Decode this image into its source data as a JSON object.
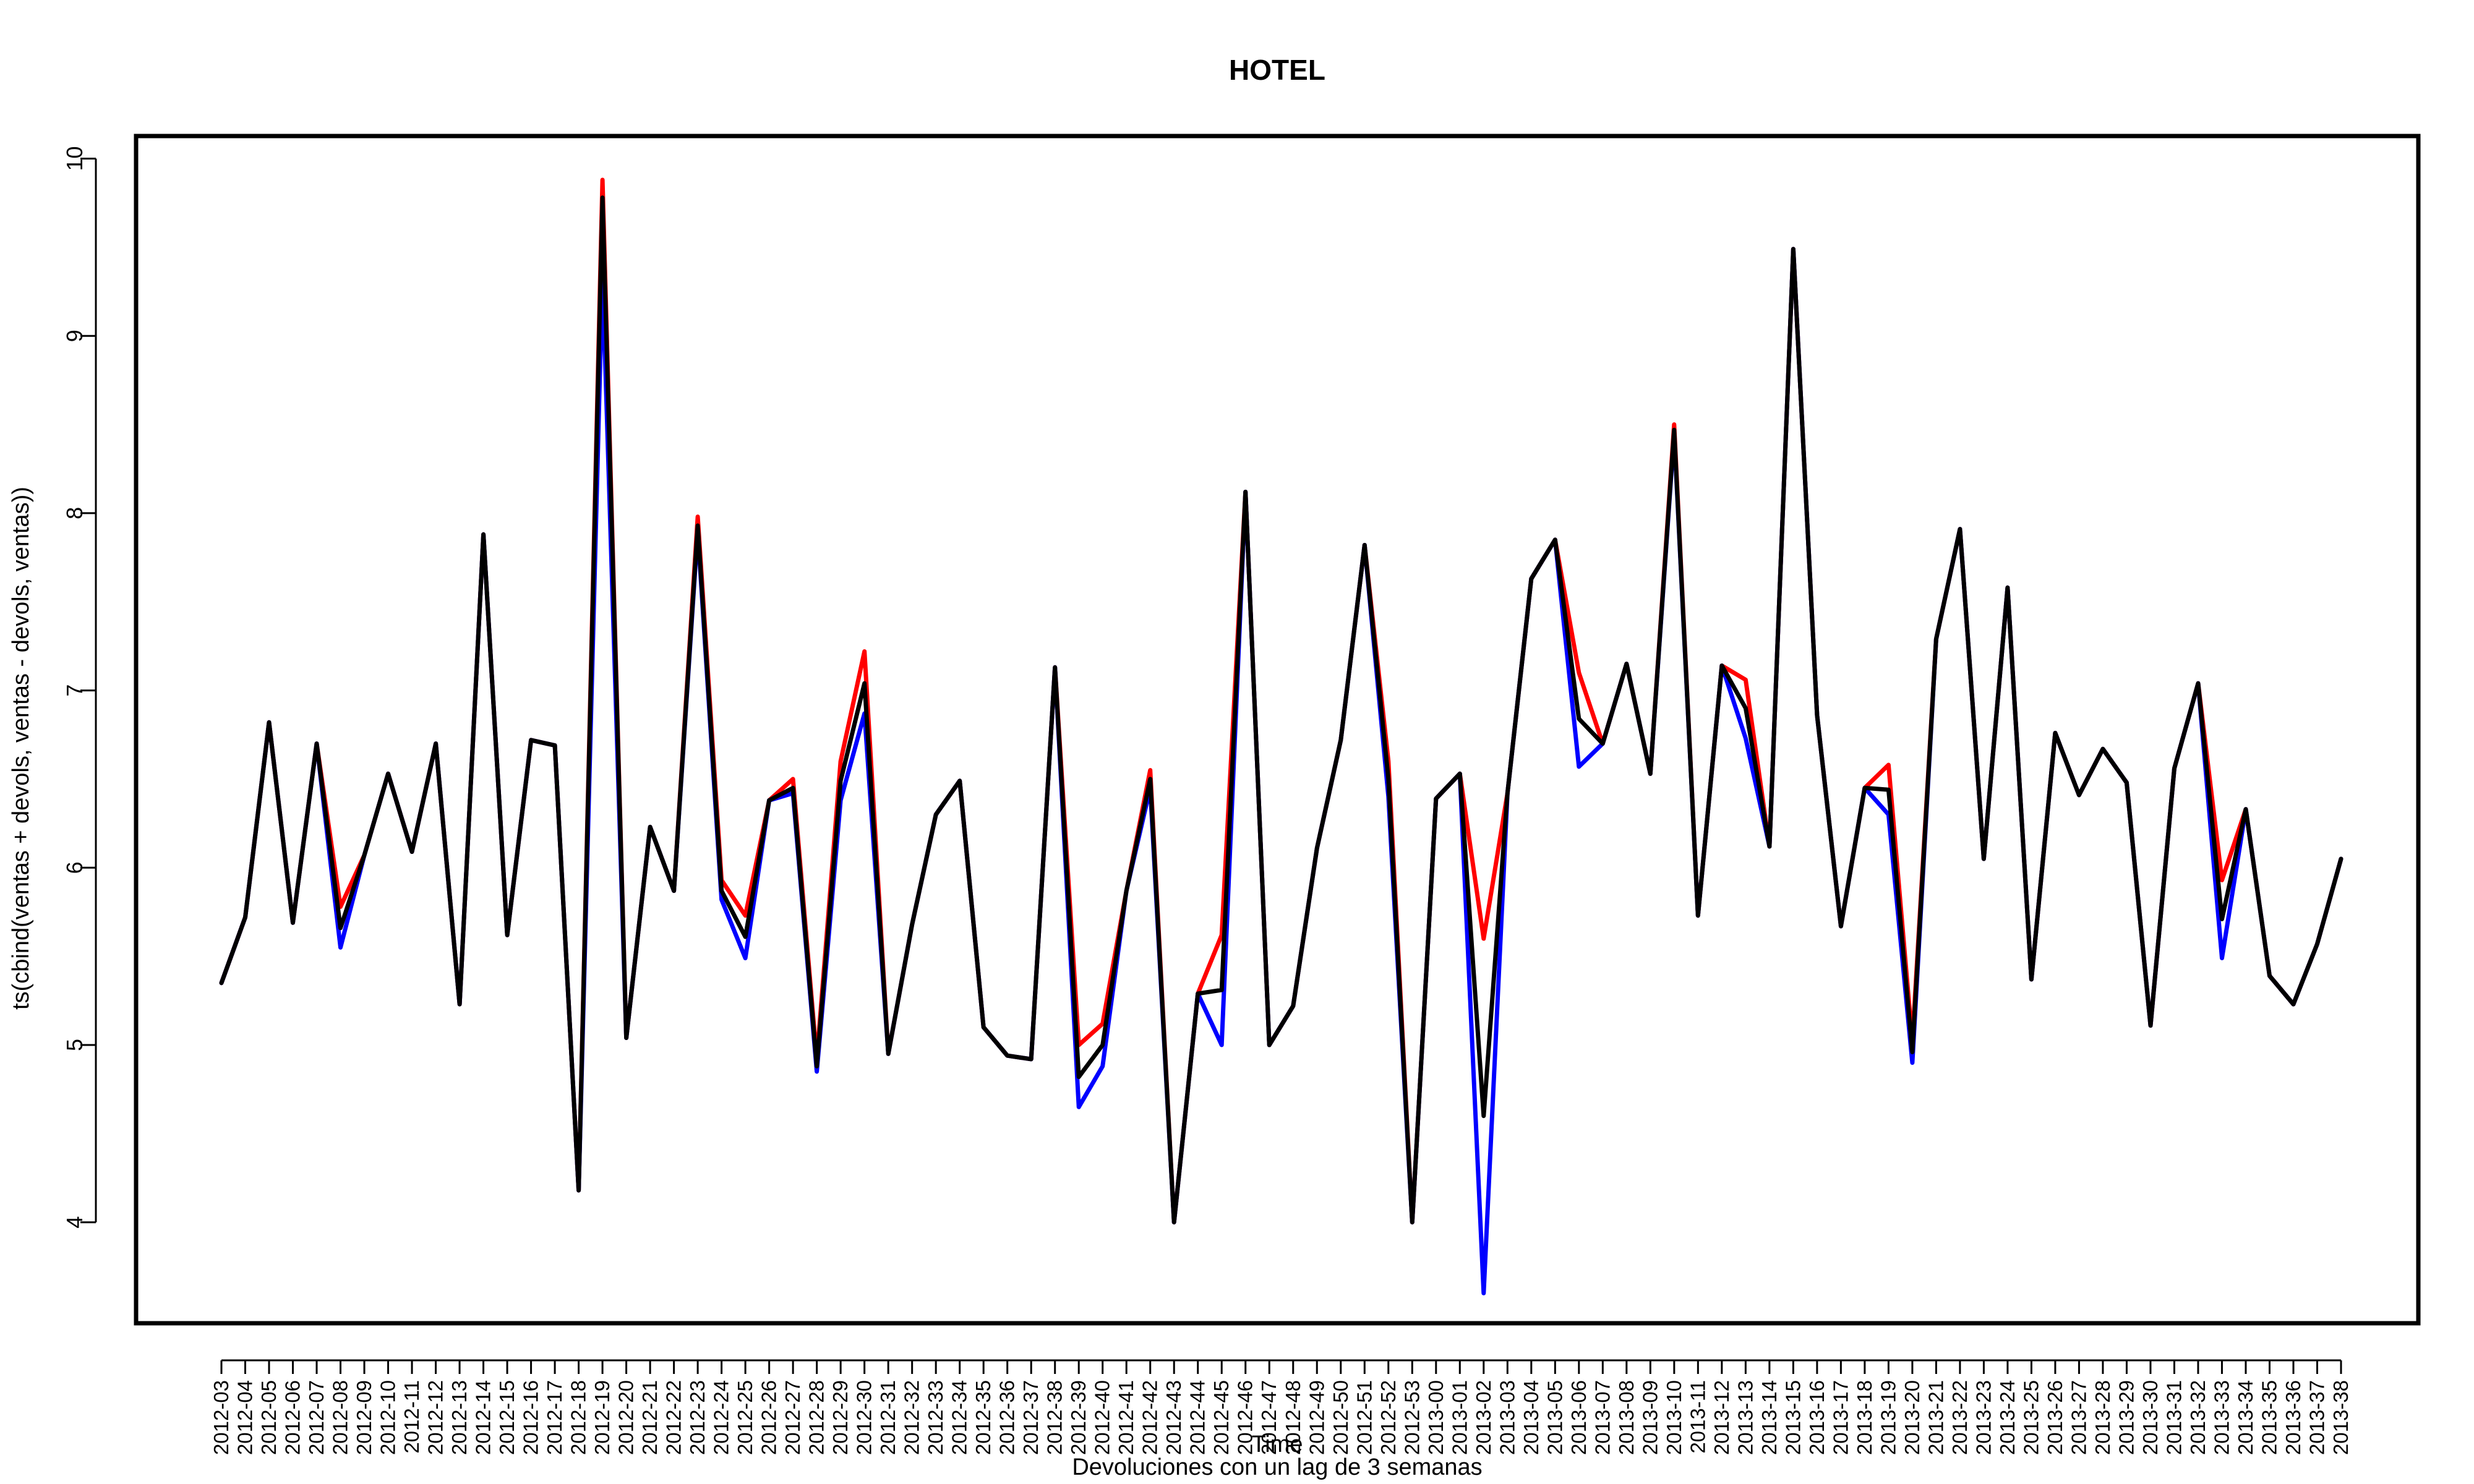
{
  "chart_data": {
    "type": "line",
    "title": "HOTEL",
    "xlabel": "Time",
    "subtitle": "Devoluciones con un lag de 3 semanas",
    "ylabel": "ts(cbind(ventas + devols, ventas - devols, ventas))",
    "ylim": [
      3.4,
      10.15
    ],
    "yticks": [
      4,
      5,
      6,
      7,
      8,
      9,
      10
    ],
    "grid": false,
    "legend": "none",
    "x": [
      "2012-03",
      "2012-04",
      "2012-05",
      "2012-06",
      "2012-07",
      "2012-08",
      "2012-09",
      "2012-10",
      "2012-11",
      "2012-12",
      "2012-13",
      "2012-14",
      "2012-15",
      "2012-16",
      "2012-17",
      "2012-18",
      "2012-19",
      "2012-20",
      "2012-21",
      "2012-22",
      "2012-23",
      "2012-24",
      "2012-25",
      "2012-26",
      "2012-27",
      "2012-28",
      "2012-29",
      "2012-30",
      "2012-31",
      "2012-32",
      "2012-33",
      "2012-34",
      "2012-35",
      "2012-36",
      "2012-37",
      "2012-38",
      "2012-39",
      "2012-40",
      "2012-41",
      "2012-42",
      "2012-43",
      "2012-44",
      "2012-45",
      "2012-46",
      "2012-47",
      "2012-48",
      "2012-49",
      "2012-50",
      "2012-51",
      "2012-52",
      "2012-53",
      "2013-00",
      "2013-01",
      "2013-02",
      "2013-03",
      "2013-04",
      "2013-05",
      "2013-06",
      "2013-07",
      "2013-08",
      "2013-09",
      "2013-10",
      "2013-11",
      "2013-12",
      "2013-13",
      "2013-14",
      "2013-15",
      "2013-16",
      "2013-17",
      "2013-18",
      "2013-19",
      "2013-20",
      "2013-21",
      "2013-22",
      "2013-23",
      "2013-24",
      "2013-25",
      "2013-26",
      "2013-27",
      "2013-28",
      "2013-29",
      "2013-30",
      "2013-31",
      "2013-32",
      "2013-33",
      "2013-34",
      "2013-35",
      "2013-36",
      "2013-37",
      "2013-38"
    ],
    "series": [
      {
        "color": "#ff0000",
        "values": [
          5.35,
          5.72,
          6.82,
          5.69,
          6.7,
          5.78,
          6.07,
          6.53,
          6.09,
          6.7,
          5.23,
          7.88,
          5.62,
          6.72,
          6.69,
          4.18,
          9.88,
          5.04,
          6.23,
          5.87,
          7.98,
          5.93,
          5.73,
          6.38,
          6.5,
          4.92,
          6.6,
          7.22,
          4.95,
          5.68,
          6.3,
          6.49,
          5.1,
          4.94,
          4.92,
          7.13,
          5.0,
          5.12,
          5.87,
          6.55,
          4.0,
          5.29,
          5.62,
          8.12,
          5.0,
          5.22,
          6.11,
          6.72,
          7.82,
          6.6,
          4.0,
          6.39,
          6.53,
          5.6,
          6.42,
          7.63,
          7.85,
          7.1,
          6.7,
          7.15,
          6.53,
          8.5,
          5.73,
          7.14,
          7.06,
          6.12,
          9.49,
          6.86,
          5.67,
          6.45,
          6.58,
          5.02,
          7.29,
          7.91,
          6.05,
          7.58,
          5.37,
          6.76,
          6.41,
          6.67,
          6.48,
          5.11,
          6.56,
          7.04,
          5.93,
          6.33,
          5.39,
          5.23,
          5.57,
          6.05
        ]
      },
      {
        "color": "#0000ff",
        "values": [
          5.35,
          5.72,
          6.82,
          5.69,
          6.7,
          5.55,
          6.07,
          6.53,
          6.09,
          6.7,
          5.23,
          7.88,
          5.62,
          6.72,
          6.69,
          4.18,
          9.35,
          5.04,
          6.23,
          5.87,
          7.9,
          5.82,
          5.49,
          6.38,
          6.42,
          4.85,
          6.38,
          6.87,
          4.95,
          5.68,
          6.3,
          6.49,
          5.1,
          4.94,
          4.92,
          7.13,
          4.65,
          4.88,
          5.87,
          6.45,
          4.0,
          5.29,
          5.0,
          8.12,
          5.0,
          5.22,
          6.11,
          6.72,
          7.82,
          6.4,
          4.0,
          6.39,
          6.53,
          3.6,
          6.42,
          7.63,
          7.85,
          6.57,
          6.7,
          7.15,
          6.53,
          8.45,
          5.73,
          7.14,
          6.73,
          6.12,
          9.49,
          6.86,
          5.67,
          6.45,
          6.3,
          4.9,
          7.29,
          7.91,
          6.05,
          7.58,
          5.37,
          6.76,
          6.41,
          6.67,
          6.48,
          5.11,
          6.56,
          7.04,
          5.49,
          6.33,
          5.39,
          5.23,
          5.57,
          6.05
        ]
      },
      {
        "color": "#000000",
        "values": [
          5.35,
          5.72,
          6.82,
          5.69,
          6.7,
          5.66,
          6.07,
          6.53,
          6.09,
          6.7,
          5.23,
          7.88,
          5.62,
          6.72,
          6.69,
          4.18,
          9.78,
          5.04,
          6.23,
          5.87,
          7.93,
          5.87,
          5.61,
          6.38,
          6.45,
          4.88,
          6.49,
          7.04,
          4.95,
          5.68,
          6.3,
          6.49,
          5.1,
          4.94,
          4.92,
          7.13,
          4.82,
          5.0,
          5.87,
          6.5,
          4.0,
          5.29,
          5.31,
          8.12,
          5.0,
          5.22,
          6.11,
          6.72,
          7.82,
          6.5,
          4.0,
          6.39,
          6.53,
          4.6,
          6.42,
          7.63,
          7.85,
          6.84,
          6.7,
          7.15,
          6.53,
          8.47,
          5.73,
          7.14,
          6.9,
          6.12,
          9.49,
          6.86,
          5.67,
          6.45,
          6.44,
          4.96,
          7.29,
          7.91,
          6.05,
          7.58,
          5.37,
          6.76,
          6.41,
          6.67,
          6.48,
          5.11,
          6.56,
          7.04,
          5.71,
          6.33,
          5.39,
          5.23,
          5.57,
          6.05
        ]
      }
    ]
  }
}
